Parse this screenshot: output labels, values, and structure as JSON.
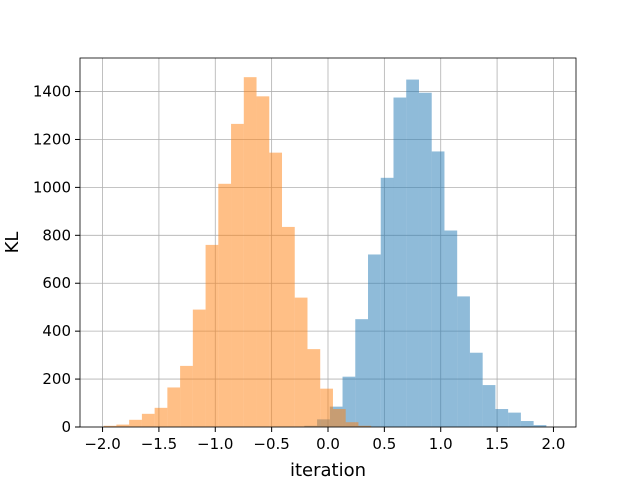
{
  "chart_data": {
    "type": "histogram",
    "xlabel": "iteration",
    "ylabel": "KL",
    "xlim": [
      -2.2,
      2.2
    ],
    "ylim": [
      0,
      1540
    ],
    "grid": true,
    "bin_width": 0.113,
    "xticks": [
      -2.0,
      -1.5,
      -1.0,
      -0.5,
      0.0,
      0.5,
      1.0,
      1.5,
      2.0
    ],
    "xtick_labels": [
      "−2.0",
      "−1.5",
      "−1.0",
      "−0.5",
      "0.0",
      "0.5",
      "1.0",
      "1.5",
      "2.0"
    ],
    "yticks": [
      0,
      200,
      400,
      600,
      800,
      1000,
      1200,
      1400
    ],
    "ytick_labels": [
      "0",
      "200",
      "400",
      "600",
      "800",
      "1000",
      "1200",
      "1400"
    ],
    "series": [
      {
        "color": "#1f77b4",
        "opacity": 0.5,
        "bin_starts": [
          -0.21,
          -0.097,
          0.016,
          0.129,
          0.242,
          0.355,
          0.468,
          0.581,
          0.694,
          0.807,
          0.92,
          1.033,
          1.146,
          1.259,
          1.372,
          1.485,
          1.598,
          1.711,
          1.824
        ],
        "counts": [
          5,
          32,
          85,
          210,
          450,
          720,
          1040,
          1375,
          1450,
          1395,
          1150,
          820,
          545,
          310,
          175,
          75,
          60,
          25,
          8
        ]
      },
      {
        "color": "#ff7f0e",
        "opacity": 0.5,
        "bin_starts": [
          -1.99,
          -1.877,
          -1.764,
          -1.651,
          -1.538,
          -1.425,
          -1.312,
          -1.199,
          -1.086,
          -0.973,
          -0.86,
          -0.747,
          -0.634,
          -0.521,
          -0.408,
          -0.295,
          -0.182,
          -0.069,
          0.044,
          0.157,
          0.27
        ],
        "counts": [
          5,
          10,
          30,
          55,
          80,
          165,
          255,
          490,
          760,
          1015,
          1265,
          1460,
          1380,
          1145,
          835,
          540,
          325,
          160,
          75,
          20,
          5
        ]
      }
    ]
  }
}
